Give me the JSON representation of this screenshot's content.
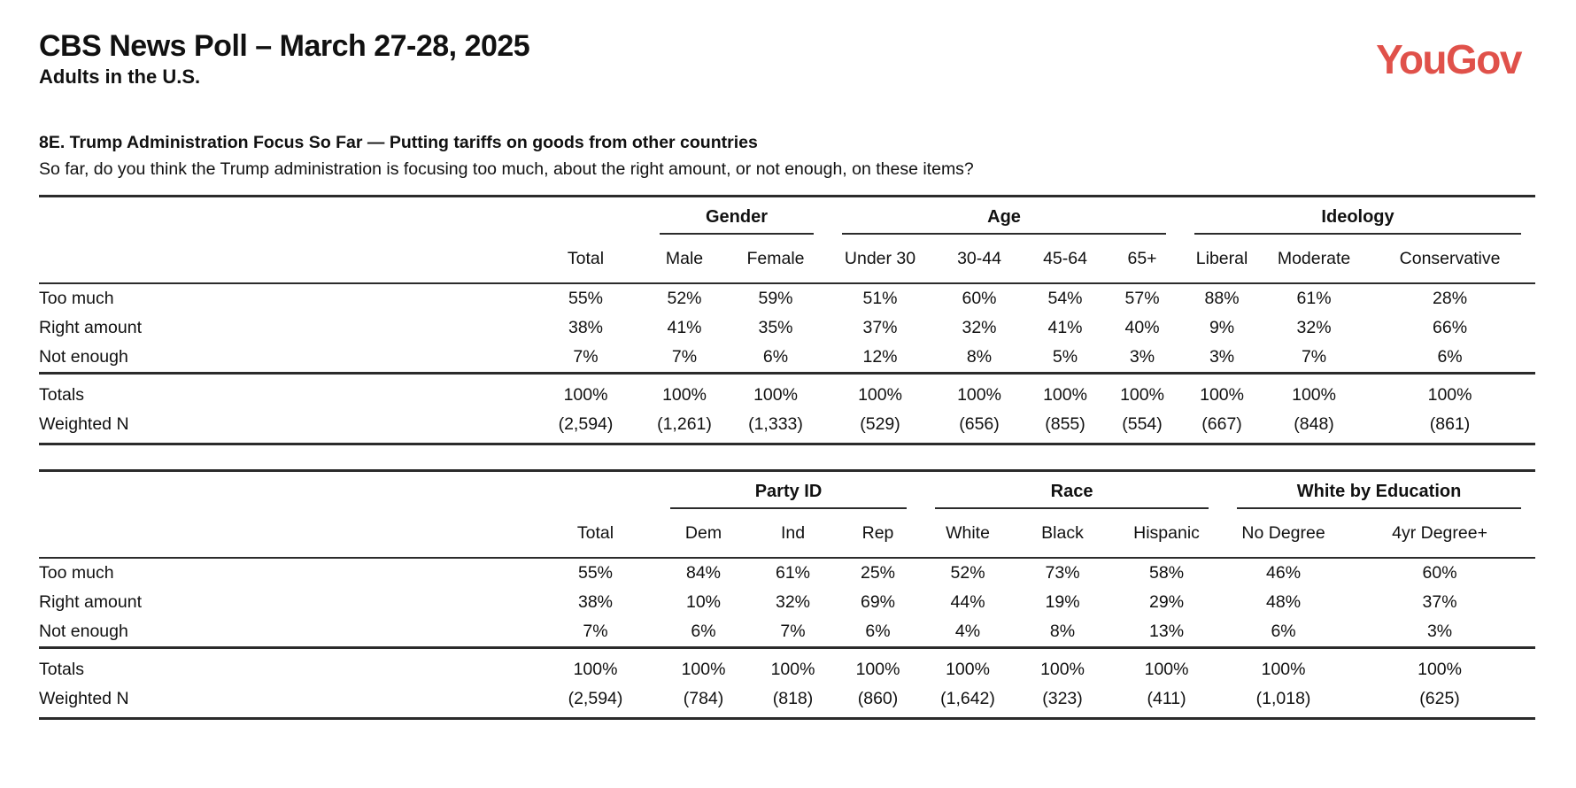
{
  "header": {
    "title": "CBS News Poll – March 27-28, 2025",
    "subtitle": "Adults in the U.S.",
    "logo_text": "YouGov",
    "logo_color": "#E0514A"
  },
  "question": {
    "heading": "8E. Trump Administration Focus So Far — Putting tariffs on goods from other countries",
    "subheading": "So far, do you think the Trump administration is focusing too much, about the right amount, or not enough, on these items?"
  },
  "tables": [
    {
      "name": "crosstab-gender-age-ideology",
      "groups": [
        {
          "label": "",
          "span": 2
        },
        {
          "label": "Gender",
          "span": 2
        },
        {
          "label": "Age",
          "span": 4
        },
        {
          "label": "Ideology",
          "span": 3
        }
      ],
      "columns": [
        "",
        "Total",
        "Male",
        "Female",
        "Under 30",
        "30-44",
        "45-64",
        "65+",
        "Liberal",
        "Moderate",
        "Conservative"
      ],
      "rows": [
        {
          "label": "Too much",
          "values": [
            "55%",
            "52%",
            "59%",
            "51%",
            "60%",
            "54%",
            "57%",
            "88%",
            "61%",
            "28%"
          ]
        },
        {
          "label": "Right amount",
          "values": [
            "38%",
            "41%",
            "35%",
            "37%",
            "32%",
            "41%",
            "40%",
            "9%",
            "32%",
            "66%"
          ]
        },
        {
          "label": "Not enough",
          "values": [
            "7%",
            "7%",
            "6%",
            "12%",
            "8%",
            "5%",
            "3%",
            "3%",
            "7%",
            "6%"
          ]
        }
      ],
      "totals": {
        "label": "Totals",
        "values": [
          "100%",
          "100%",
          "100%",
          "100%",
          "100%",
          "100%",
          "100%",
          "100%",
          "100%",
          "100%"
        ]
      },
      "weighted_n": {
        "label": "Weighted N",
        "values": [
          "(2,594)",
          "(1,261)",
          "(1,333)",
          "(529)",
          "(656)",
          "(855)",
          "(554)",
          "(667)",
          "(848)",
          "(861)"
        ]
      }
    },
    {
      "name": "crosstab-party-race-education",
      "groups": [
        {
          "label": "",
          "span": 2
        },
        {
          "label": "Party ID",
          "span": 3
        },
        {
          "label": "Race",
          "span": 3
        },
        {
          "label": "White by Education",
          "span": 2
        }
      ],
      "columns": [
        "",
        "Total",
        "Dem",
        "Ind",
        "Rep",
        "White",
        "Black",
        "Hispanic",
        "No Degree",
        "4yr Degree+"
      ],
      "rows": [
        {
          "label": "Too much",
          "values": [
            "55%",
            "84%",
            "61%",
            "25%",
            "52%",
            "73%",
            "58%",
            "46%",
            "60%"
          ]
        },
        {
          "label": "Right amount",
          "values": [
            "38%",
            "10%",
            "32%",
            "69%",
            "44%",
            "19%",
            "29%",
            "48%",
            "37%"
          ]
        },
        {
          "label": "Not enough",
          "values": [
            "7%",
            "6%",
            "7%",
            "6%",
            "4%",
            "8%",
            "13%",
            "6%",
            "3%"
          ]
        }
      ],
      "totals": {
        "label": "Totals",
        "values": [
          "100%",
          "100%",
          "100%",
          "100%",
          "100%",
          "100%",
          "100%",
          "100%",
          "100%"
        ]
      },
      "weighted_n": {
        "label": "Weighted N",
        "values": [
          "(2,594)",
          "(784)",
          "(818)",
          "(860)",
          "(1,642)",
          "(323)",
          "(411)",
          "(1,018)",
          "(625)"
        ]
      }
    }
  ]
}
